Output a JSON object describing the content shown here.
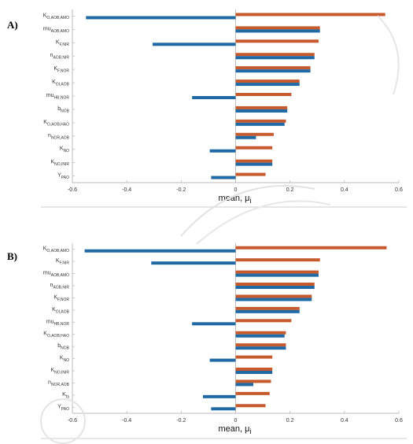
{
  "colors": {
    "series_a": "#c65a2c",
    "series_b": "#1f6aa5",
    "axis": "#bbbbbb",
    "watermark": "#d6d6d6"
  },
  "chart_data": [
    {
      "panel_label": "A)",
      "type": "bar",
      "orientation": "horizontal",
      "xlabel": "mean, μ",
      "xlabel_sub": "i",
      "xlim": [
        -0.6,
        0.6
      ],
      "xticks": [
        "-0.6",
        "-0.4",
        "-0.2",
        "0",
        "0.2",
        "0.4",
        "0.6"
      ],
      "grid": false,
      "categories": [
        {
          "main": "K",
          "sub": "O,AOB,AMO"
        },
        {
          "main": "mu",
          "sub": "AOB,AMO"
        },
        {
          "main": "K",
          "sub": "F,NIR"
        },
        {
          "main": "n",
          "sub": "AOB,NIR"
        },
        {
          "main": "K",
          "sub": "F,NOR"
        },
        {
          "main": "K",
          "sub": "OI,AOB"
        },
        {
          "main": "mu",
          "sub": "HB,NOR"
        },
        {
          "main": "b",
          "sub": "NOB"
        },
        {
          "main": "K",
          "sub": "O,AOB,HAO"
        },
        {
          "main": "n",
          "sub": "NOR,AOB"
        },
        {
          "main": "K",
          "sub": "NO"
        },
        {
          "main": "K",
          "sub": "NO,INIR"
        },
        {
          "main": "Y",
          "sub": "PAO"
        }
      ],
      "series": [
        {
          "values": [
            0.55,
            0.31,
            0.305,
            0.29,
            0.275,
            0.235,
            0.205,
            0.19,
            0.185,
            0.14,
            0.135,
            0.135,
            0.11
          ]
        },
        {
          "values": [
            -0.55,
            0.31,
            -0.305,
            0.29,
            0.275,
            0.235,
            -0.16,
            0.19,
            0.18,
            0.075,
            -0.095,
            0.135,
            -0.09
          ]
        }
      ]
    },
    {
      "panel_label": "B)",
      "type": "bar",
      "orientation": "horizontal",
      "xlabel": "mean, μ",
      "xlabel_sub": "i",
      "xlim": [
        -0.6,
        0.6
      ],
      "xticks": [
        "-0.6",
        "-0.4",
        "-0.2",
        "0",
        "0.2",
        "0.4",
        "0.6"
      ],
      "grid": false,
      "categories": [
        {
          "main": "K",
          "sub": "O,AOB,AMO"
        },
        {
          "main": "K",
          "sub": "F,NIR"
        },
        {
          "main": "mu",
          "sub": "AOB,AMO"
        },
        {
          "main": "n",
          "sub": "AOB,NIR"
        },
        {
          "main": "K",
          "sub": "F,NOR"
        },
        {
          "main": "K",
          "sub": "OI,AOB"
        },
        {
          "main": "mu",
          "sub": "HB,NOR"
        },
        {
          "main": "K",
          "sub": "O,AOB,HAO"
        },
        {
          "main": "b",
          "sub": "NOB"
        },
        {
          "main": "K",
          "sub": "NO"
        },
        {
          "main": "K",
          "sub": "NO,INIR"
        },
        {
          "main": "n",
          "sub": "NOR,AOB"
        },
        {
          "main": "K",
          "sub": "fa"
        },
        {
          "main": "Y",
          "sub": "PAO"
        }
      ],
      "series": [
        {
          "values": [
            0.555,
            0.31,
            0.305,
            0.29,
            0.28,
            0.235,
            0.205,
            0.185,
            0.185,
            0.135,
            0.135,
            0.13,
            0.125,
            0.11
          ]
        },
        {
          "values": [
            -0.555,
            -0.31,
            0.305,
            0.29,
            0.28,
            0.235,
            -0.16,
            0.18,
            0.185,
            -0.095,
            0.135,
            0.065,
            -0.12,
            -0.09
          ]
        }
      ]
    }
  ]
}
